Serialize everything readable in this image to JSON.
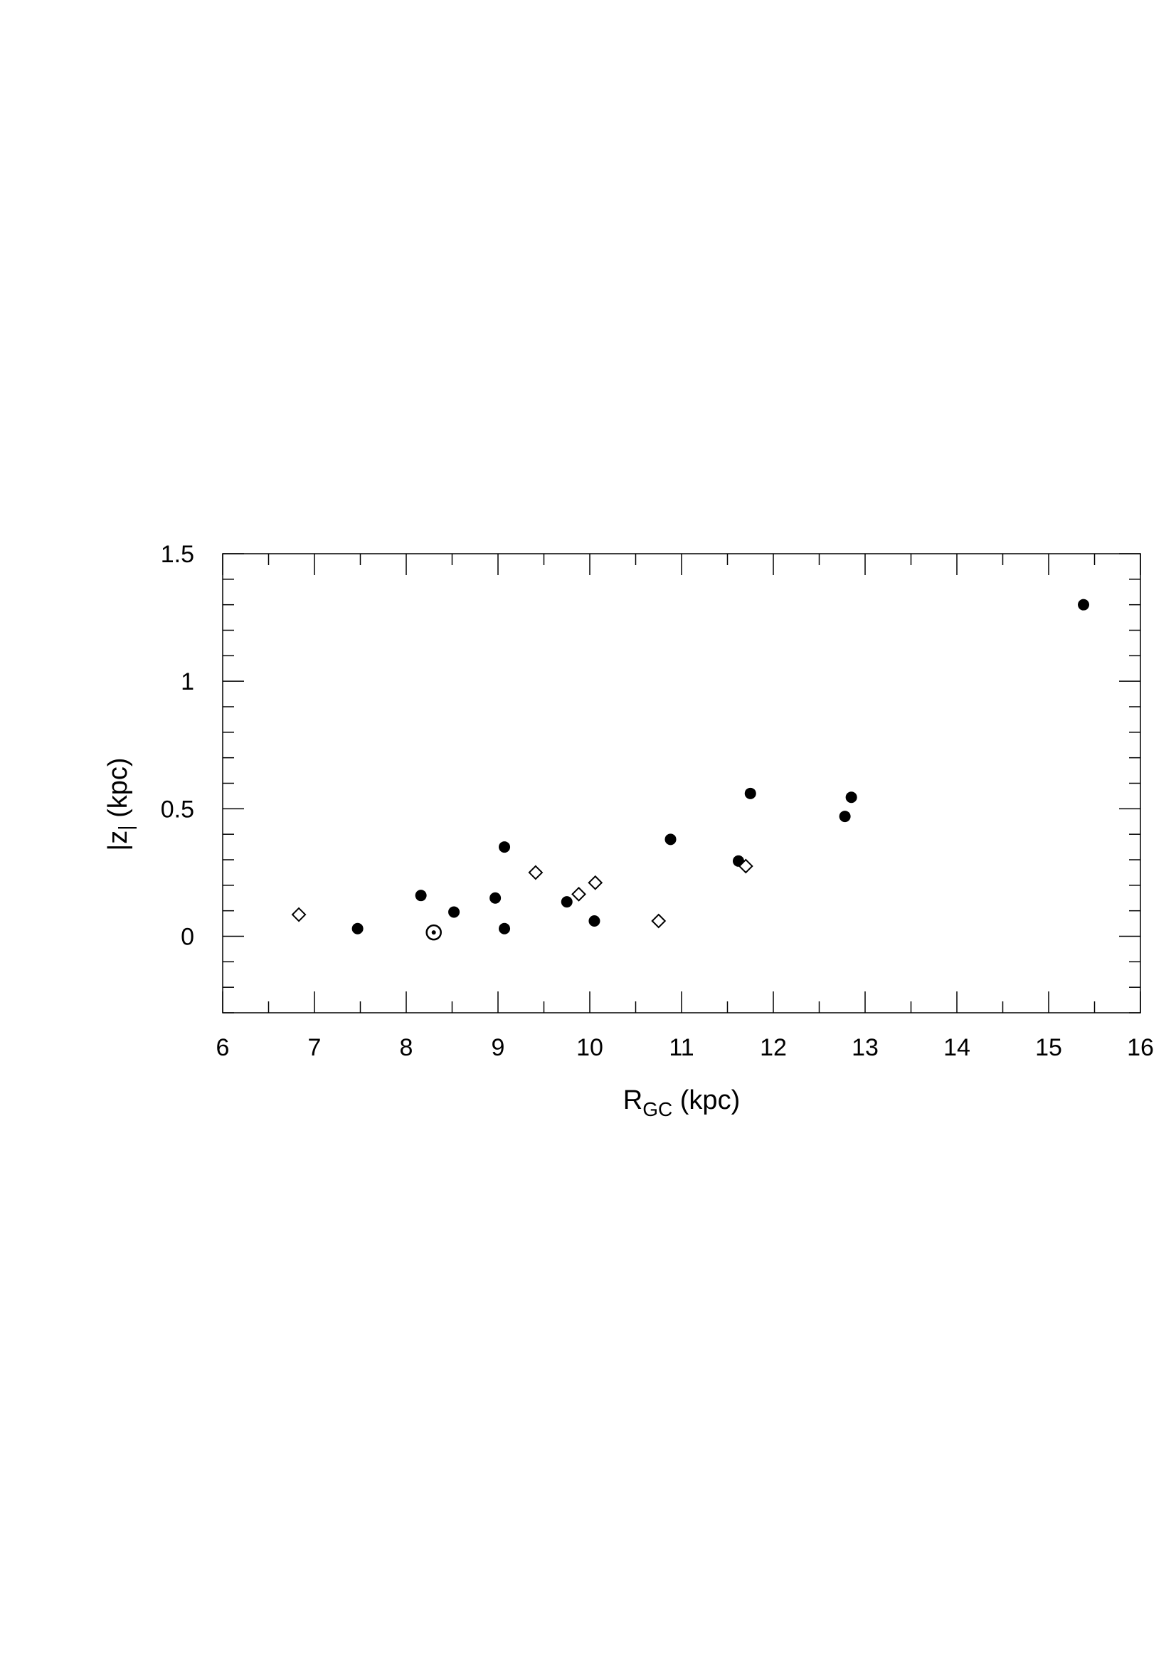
{
  "chart_data": {
    "type": "scatter",
    "title": "",
    "xlabel": {
      "main": "R",
      "sub": "GC",
      "suffix": " (kpc)"
    },
    "ylabel": {
      "prefix": "|z",
      "sub": "|",
      "suffix": " (kpc)"
    },
    "xlim": [
      6,
      16
    ],
    "ylim": [
      -0.3,
      1.5
    ],
    "xticks": [
      6,
      7,
      8,
      9,
      10,
      11,
      12,
      13,
      14,
      15,
      16
    ],
    "xtick_labels": [
      "6",
      "7",
      "8",
      "9",
      "10",
      "11",
      "12",
      "13",
      "14",
      "15",
      "16"
    ],
    "yticks": [
      0,
      0.5,
      1,
      1.5
    ],
    "ytick_labels": [
      "0",
      "0.5",
      "1",
      "1.5"
    ],
    "grid": false,
    "series": [
      {
        "marker": "filled-circle",
        "color": "#000000",
        "points": [
          {
            "x": 7.47,
            "y": 0.03
          },
          {
            "x": 8.16,
            "y": 0.16
          },
          {
            "x": 8.52,
            "y": 0.095
          },
          {
            "x": 8.97,
            "y": 0.15
          },
          {
            "x": 9.07,
            "y": 0.35
          },
          {
            "x": 9.07,
            "y": 0.03
          },
          {
            "x": 9.75,
            "y": 0.135
          },
          {
            "x": 10.05,
            "y": 0.06
          },
          {
            "x": 10.88,
            "y": 0.38
          },
          {
            "x": 11.62,
            "y": 0.295
          },
          {
            "x": 11.75,
            "y": 0.56
          },
          {
            "x": 12.78,
            "y": 0.47
          },
          {
            "x": 12.85,
            "y": 0.545
          },
          {
            "x": 15.38,
            "y": 1.3
          }
        ]
      },
      {
        "marker": "open-diamond",
        "color": "#000000",
        "points": [
          {
            "x": 6.83,
            "y": 0.085
          },
          {
            "x": 9.41,
            "y": 0.25
          },
          {
            "x": 9.88,
            "y": 0.165
          },
          {
            "x": 10.06,
            "y": 0.21
          },
          {
            "x": 10.75,
            "y": 0.06
          },
          {
            "x": 11.7,
            "y": 0.275
          }
        ]
      },
      {
        "marker": "sun-symbol",
        "color": "#000000",
        "points": [
          {
            "x": 8.3,
            "y": 0.015
          }
        ]
      }
    ]
  }
}
